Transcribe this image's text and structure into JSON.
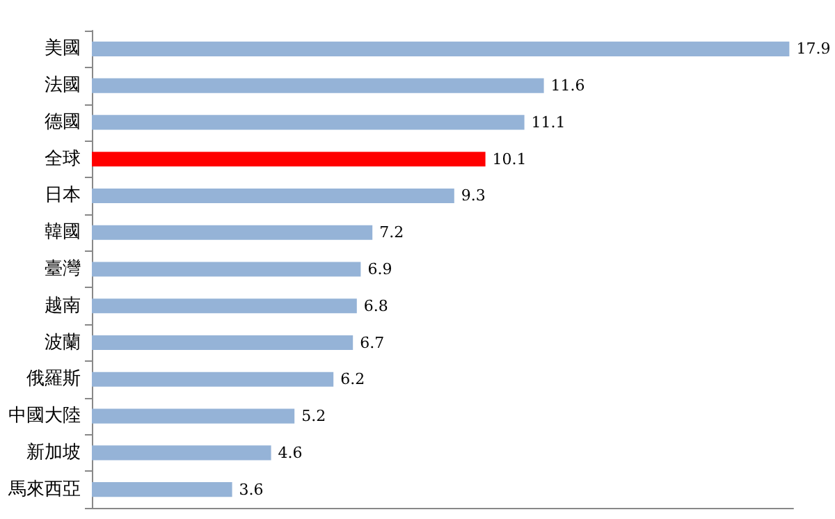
{
  "chart_data": {
    "type": "bar",
    "orientation": "horizontal",
    "categories": [
      "美國",
      "法國",
      "德國",
      "全球",
      "日本",
      "韓國",
      "臺灣",
      "越南",
      "波蘭",
      "俄羅斯",
      "中國大陸",
      "新加坡",
      "馬來西亞"
    ],
    "values": [
      17.9,
      11.6,
      11.1,
      10.1,
      9.3,
      7.2,
      6.9,
      6.8,
      6.7,
      6.2,
      5.2,
      4.6,
      3.6
    ],
    "colors": [
      "#95b3d7",
      "#95b3d7",
      "#95b3d7",
      "#ff0000",
      "#95b3d7",
      "#95b3d7",
      "#95b3d7",
      "#95b3d7",
      "#95b3d7",
      "#95b3d7",
      "#95b3d7",
      "#95b3d7",
      "#95b3d7"
    ],
    "data_labels": true
  }
}
